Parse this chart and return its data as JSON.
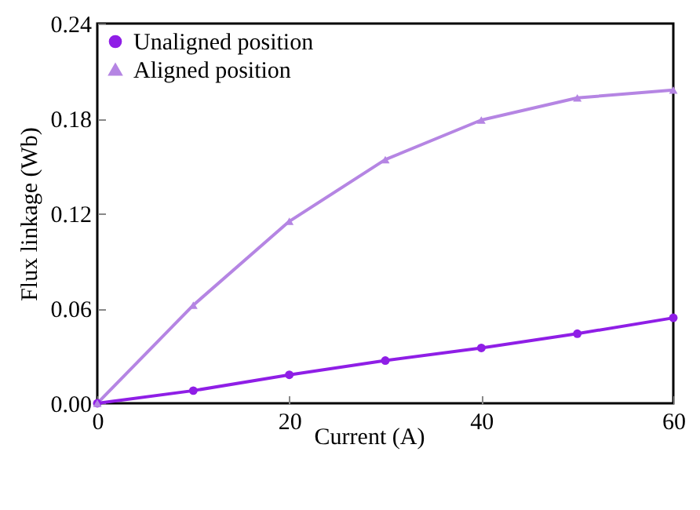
{
  "chart_data": {
    "type": "line",
    "xlabel": "Current (A)",
    "ylabel": "Flux linkage (Wb)",
    "x": [
      0,
      10,
      20,
      30,
      40,
      50,
      60
    ],
    "series": [
      {
        "name": "Unaligned position",
        "color": "#8f1ee6",
        "marker": "circle",
        "values": [
          0,
          0.008,
          0.018,
          0.027,
          0.035,
          0.044,
          0.054
        ]
      },
      {
        "name": "Aligned position",
        "color": "#b585e3",
        "marker": "triangle",
        "values": [
          0,
          0.062,
          0.115,
          0.154,
          0.179,
          0.193,
          0.198
        ]
      }
    ],
    "xlim": [
      0,
      60
    ],
    "xticks": [
      0,
      20,
      40,
      60
    ],
    "ylim": [
      0,
      0.24
    ],
    "yticks": [
      {
        "value": 0,
        "label": "0.00"
      },
      0.06,
      0.12,
      0.18,
      0.24
    ],
    "legend": "top left",
    "grid": false,
    "line_style": "solid"
  }
}
